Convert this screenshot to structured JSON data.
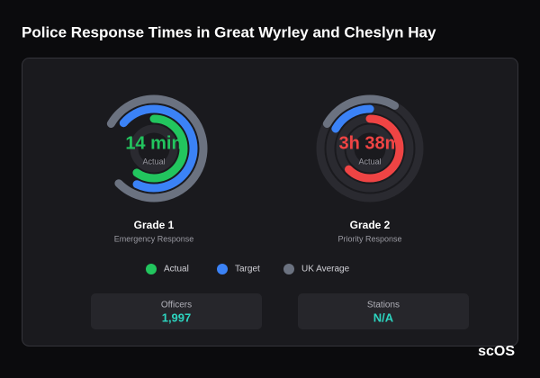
{
  "header": {
    "title": "Police Response Times in Great Wyrley and Cheslyn Hay"
  },
  "gauges": [
    {
      "value": "14 min",
      "caption": "Actual",
      "title": "Grade 1",
      "subtitle": "Emergency Response"
    },
    {
      "value": "3h 38m",
      "caption": "Actual",
      "title": "Grade 2",
      "subtitle": "Priority Response"
    }
  ],
  "legend": [
    "Actual",
    "Target",
    "UK Average"
  ],
  "stats": [
    {
      "label": "Officers",
      "value": "1,997"
    },
    {
      "label": "Stations",
      "value": "N/A"
    }
  ],
  "logo": "scOS"
}
